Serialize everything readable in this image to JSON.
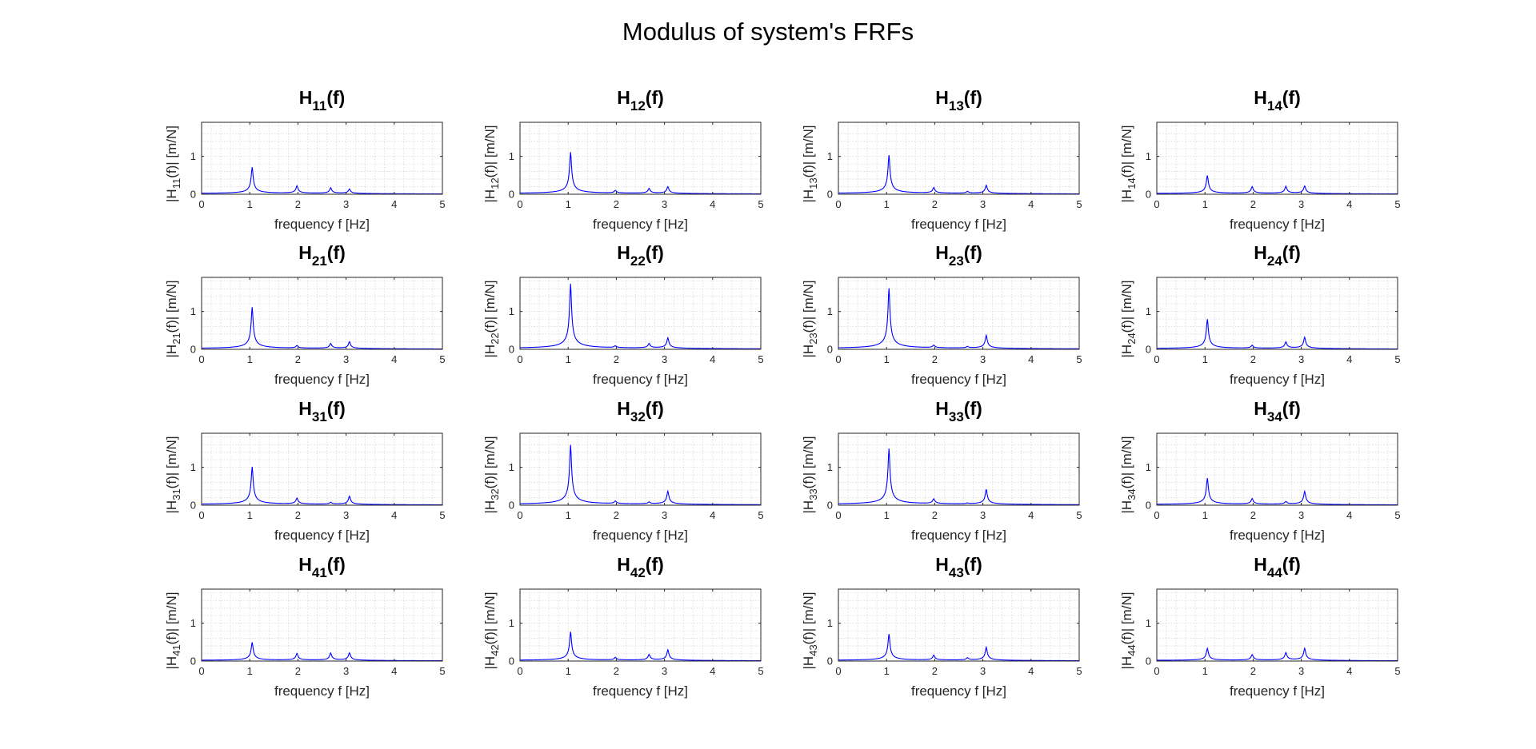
{
  "figure": {
    "title": "Modulus of system's FRFs",
    "background": "#ffffff",
    "line_color": "#0000ff",
    "grid_color": "#d9d9d9"
  },
  "chart_data": [
    {
      "type": "line",
      "title": "H11(f)",
      "title_main": "H",
      "title_sub": "11",
      "title_tail": "(f)",
      "ylabel_pre": "|H",
      "ylabel_sub": "11",
      "ylabel_post": "(f)|   [m/N]",
      "xlabel": "frequency f [Hz]",
      "xlim": [
        0,
        5
      ],
      "ylim": [
        0,
        1.9
      ],
      "xticks": [
        0,
        1,
        2,
        3,
        4,
        5
      ],
      "yticks": [
        0,
        1
      ],
      "grid": true,
      "peaks": [
        {
          "f": 1.05,
          "amp": 0.7
        },
        {
          "f": 1.98,
          "amp": 0.2
        },
        {
          "f": 2.68,
          "amp": 0.15
        },
        {
          "f": 3.07,
          "amp": 0.12
        }
      ]
    },
    {
      "type": "line",
      "title": "H12(f)",
      "title_main": "H",
      "title_sub": "12",
      "title_tail": "(f)",
      "ylabel_pre": "|H",
      "ylabel_sub": "12",
      "ylabel_post": "(f)|   [m/N]",
      "xlabel": "frequency f [Hz]",
      "xlim": [
        0,
        5
      ],
      "ylim": [
        0,
        1.9
      ],
      "xticks": [
        0,
        1,
        2,
        3,
        4,
        5
      ],
      "yticks": [
        0,
        1
      ],
      "grid": true,
      "peaks": [
        {
          "f": 1.05,
          "amp": 1.1
        },
        {
          "f": 1.98,
          "amp": 0.07
        },
        {
          "f": 2.68,
          "amp": 0.13
        },
        {
          "f": 3.07,
          "amp": 0.18
        }
      ]
    },
    {
      "type": "line",
      "title": "H13(f)",
      "title_main": "H",
      "title_sub": "13",
      "title_tail": "(f)",
      "ylabel_pre": "|H",
      "ylabel_sub": "13",
      "ylabel_post": "(f)|   [m/N]",
      "xlabel": "frequency f [Hz]",
      "xlim": [
        0,
        5
      ],
      "ylim": [
        0,
        1.9
      ],
      "xticks": [
        0,
        1,
        2,
        3,
        4,
        5
      ],
      "yticks": [
        0,
        1
      ],
      "grid": true,
      "peaks": [
        {
          "f": 1.05,
          "amp": 1.02
        },
        {
          "f": 1.98,
          "amp": 0.15
        },
        {
          "f": 2.68,
          "amp": 0.05
        },
        {
          "f": 3.07,
          "amp": 0.22
        }
      ]
    },
    {
      "type": "line",
      "title": "H14(f)",
      "title_main": "H",
      "title_sub": "14",
      "title_tail": "(f)",
      "ylabel_pre": "|H",
      "ylabel_sub": "14",
      "ylabel_post": "(f)|   [m/N]",
      "xlabel": "frequency f [Hz]",
      "xlim": [
        0,
        5
      ],
      "ylim": [
        0,
        1.9
      ],
      "xticks": [
        0,
        1,
        2,
        3,
        4,
        5
      ],
      "yticks": [
        0,
        1
      ],
      "grid": true,
      "peaks": [
        {
          "f": 1.05,
          "amp": 0.48
        },
        {
          "f": 1.98,
          "amp": 0.18
        },
        {
          "f": 2.68,
          "amp": 0.19
        },
        {
          "f": 3.07,
          "amp": 0.2
        }
      ]
    },
    {
      "type": "line",
      "title": "H21(f)",
      "title_main": "H",
      "title_sub": "21",
      "title_tail": "(f)",
      "ylabel_pre": "|H",
      "ylabel_sub": "21",
      "ylabel_post": "(f)|   [m/N]",
      "xlabel": "frequency f [Hz]",
      "xlim": [
        0,
        5
      ],
      "ylim": [
        0,
        1.9
      ],
      "xticks": [
        0,
        1,
        2,
        3,
        4,
        5
      ],
      "yticks": [
        0,
        1
      ],
      "grid": true,
      "peaks": [
        {
          "f": 1.05,
          "amp": 1.1
        },
        {
          "f": 1.98,
          "amp": 0.07
        },
        {
          "f": 2.68,
          "amp": 0.13
        },
        {
          "f": 3.07,
          "amp": 0.18
        }
      ]
    },
    {
      "type": "line",
      "title": "H22(f)",
      "title_main": "H",
      "title_sub": "22",
      "title_tail": "(f)",
      "ylabel_pre": "|H",
      "ylabel_sub": "22",
      "ylabel_post": "(f)|   [m/N]",
      "xlabel": "frequency f [Hz]",
      "xlim": [
        0,
        5
      ],
      "ylim": [
        0,
        1.9
      ],
      "xticks": [
        0,
        1,
        2,
        3,
        4,
        5
      ],
      "yticks": [
        0,
        1
      ],
      "grid": true,
      "peaks": [
        {
          "f": 1.05,
          "amp": 1.72
        },
        {
          "f": 1.98,
          "amp": 0.05
        },
        {
          "f": 2.68,
          "amp": 0.12
        },
        {
          "f": 3.07,
          "amp": 0.28
        }
      ]
    },
    {
      "type": "line",
      "title": "H23(f)",
      "title_main": "H",
      "title_sub": "23",
      "title_tail": "(f)",
      "ylabel_pre": "|H",
      "ylabel_sub": "23",
      "ylabel_post": "(f)|   [m/N]",
      "xlabel": "frequency f [Hz]",
      "xlim": [
        0,
        5
      ],
      "ylim": [
        0,
        1.9
      ],
      "xticks": [
        0,
        1,
        2,
        3,
        4,
        5
      ],
      "yticks": [
        0,
        1
      ],
      "grid": true,
      "peaks": [
        {
          "f": 1.05,
          "amp": 1.6
        },
        {
          "f": 1.98,
          "amp": 0.07
        },
        {
          "f": 2.68,
          "amp": 0.04
        },
        {
          "f": 3.07,
          "amp": 0.35
        }
      ]
    },
    {
      "type": "line",
      "title": "H24(f)",
      "title_main": "H",
      "title_sub": "24",
      "title_tail": "(f)",
      "ylabel_pre": "|H",
      "ylabel_sub": "24",
      "ylabel_post": "(f)|   [m/N]",
      "xlabel": "frequency f [Hz]",
      "xlim": [
        0,
        5
      ],
      "ylim": [
        0,
        1.9
      ],
      "xticks": [
        0,
        1,
        2,
        3,
        4,
        5
      ],
      "yticks": [
        0,
        1
      ],
      "grid": true,
      "peaks": [
        {
          "f": 1.05,
          "amp": 0.78
        },
        {
          "f": 1.98,
          "amp": 0.08
        },
        {
          "f": 2.68,
          "amp": 0.17
        },
        {
          "f": 3.07,
          "amp": 0.3
        }
      ]
    },
    {
      "type": "line",
      "title": "H31(f)",
      "title_main": "H",
      "title_sub": "31",
      "title_tail": "(f)",
      "ylabel_pre": "|H",
      "ylabel_sub": "31",
      "ylabel_post": "(f)|   [m/N]",
      "xlabel": "frequency f [Hz]",
      "xlim": [
        0,
        5
      ],
      "ylim": [
        0,
        1.9
      ],
      "xticks": [
        0,
        1,
        2,
        3,
        4,
        5
      ],
      "yticks": [
        0,
        1
      ],
      "grid": true,
      "peaks": [
        {
          "f": 1.05,
          "amp": 1.0
        },
        {
          "f": 1.98,
          "amp": 0.16
        },
        {
          "f": 2.68,
          "amp": 0.05
        },
        {
          "f": 3.07,
          "amp": 0.22
        }
      ]
    },
    {
      "type": "line",
      "title": "H32(f)",
      "title_main": "H",
      "title_sub": "32",
      "title_tail": "(f)",
      "ylabel_pre": "|H",
      "ylabel_sub": "32",
      "ylabel_post": "(f)|   [m/N]",
      "xlabel": "frequency f [Hz]",
      "xlim": [
        0,
        5
      ],
      "ylim": [
        0,
        1.9
      ],
      "xticks": [
        0,
        1,
        2,
        3,
        4,
        5
      ],
      "yticks": [
        0,
        1
      ],
      "grid": true,
      "peaks": [
        {
          "f": 1.05,
          "amp": 1.58
        },
        {
          "f": 1.98,
          "amp": 0.07
        },
        {
          "f": 2.68,
          "amp": 0.05
        },
        {
          "f": 3.07,
          "amp": 0.35
        }
      ]
    },
    {
      "type": "line",
      "title": "H33(f)",
      "title_main": "H",
      "title_sub": "33",
      "title_tail": "(f)",
      "ylabel_pre": "|H",
      "ylabel_sub": "33",
      "ylabel_post": "(f)|   [m/N]",
      "xlabel": "frequency f [Hz]",
      "xlim": [
        0,
        5
      ],
      "ylim": [
        0,
        1.9
      ],
      "xticks": [
        0,
        1,
        2,
        3,
        4,
        5
      ],
      "yticks": [
        0,
        1
      ],
      "grid": true,
      "peaks": [
        {
          "f": 1.05,
          "amp": 1.48
        },
        {
          "f": 1.98,
          "amp": 0.13
        },
        {
          "f": 2.68,
          "amp": 0.02
        },
        {
          "f": 3.07,
          "amp": 0.4
        }
      ]
    },
    {
      "type": "line",
      "title": "H34(f)",
      "title_main": "H",
      "title_sub": "34",
      "title_tail": "(f)",
      "ylabel_pre": "|H",
      "ylabel_sub": "34",
      "ylabel_post": "(f)|   [m/N]",
      "xlabel": "frequency f [Hz]",
      "xlim": [
        0,
        5
      ],
      "ylim": [
        0,
        1.9
      ],
      "xticks": [
        0,
        1,
        2,
        3,
        4,
        5
      ],
      "yticks": [
        0,
        1
      ],
      "grid": true,
      "peaks": [
        {
          "f": 1.05,
          "amp": 0.7
        },
        {
          "f": 1.98,
          "amp": 0.15
        },
        {
          "f": 2.68,
          "amp": 0.07
        },
        {
          "f": 3.07,
          "amp": 0.35
        }
      ]
    },
    {
      "type": "line",
      "title": "H41(f)",
      "title_main": "H",
      "title_sub": "41",
      "title_tail": "(f)",
      "ylabel_pre": "|H",
      "ylabel_sub": "41",
      "ylabel_post": "(f)|   [m/N]",
      "xlabel": "frequency f [Hz]",
      "xlim": [
        0,
        5
      ],
      "ylim": [
        0,
        1.9
      ],
      "xticks": [
        0,
        1,
        2,
        3,
        4,
        5
      ],
      "yticks": [
        0,
        1
      ],
      "grid": true,
      "peaks": [
        {
          "f": 1.05,
          "amp": 0.48
        },
        {
          "f": 1.98,
          "amp": 0.18
        },
        {
          "f": 2.68,
          "amp": 0.19
        },
        {
          "f": 3.07,
          "amp": 0.2
        }
      ]
    },
    {
      "type": "line",
      "title": "H42(f)",
      "title_main": "H",
      "title_sub": "42",
      "title_tail": "(f)",
      "ylabel_pre": "|H",
      "ylabel_sub": "42",
      "ylabel_post": "(f)|   [m/N]",
      "xlabel": "frequency f [Hz]",
      "xlim": [
        0,
        5
      ],
      "ylim": [
        0,
        1.9
      ],
      "xticks": [
        0,
        1,
        2,
        3,
        4,
        5
      ],
      "yticks": [
        0,
        1
      ],
      "grid": true,
      "peaks": [
        {
          "f": 1.05,
          "amp": 0.76
        },
        {
          "f": 1.98,
          "amp": 0.07
        },
        {
          "f": 2.68,
          "amp": 0.15
        },
        {
          "f": 3.07,
          "amp": 0.28
        }
      ]
    },
    {
      "type": "line",
      "title": "H43(f)",
      "title_main": "H",
      "title_sub": "43",
      "title_tail": "(f)",
      "ylabel_pre": "|H",
      "ylabel_sub": "43",
      "ylabel_post": "(f)|   [m/N]",
      "xlabel": "frequency f [Hz]",
      "xlim": [
        0,
        5
      ],
      "ylim": [
        0,
        1.9
      ],
      "xticks": [
        0,
        1,
        2,
        3,
        4,
        5
      ],
      "yticks": [
        0,
        1
      ],
      "grid": true,
      "peaks": [
        {
          "f": 1.05,
          "amp": 0.7
        },
        {
          "f": 1.98,
          "amp": 0.13
        },
        {
          "f": 2.68,
          "amp": 0.06
        },
        {
          "f": 3.07,
          "amp": 0.35
        }
      ]
    },
    {
      "type": "line",
      "title": "H44(f)",
      "title_main": "H",
      "title_sub": "44",
      "title_tail": "(f)",
      "ylabel_pre": "|H",
      "ylabel_sub": "44",
      "ylabel_post": "(f)|   [m/N]",
      "xlabel": "frequency f [Hz]",
      "xlim": [
        0,
        5
      ],
      "ylim": [
        0,
        1.9
      ],
      "xticks": [
        0,
        1,
        2,
        3,
        4,
        5
      ],
      "yticks": [
        0,
        1
      ],
      "grid": true,
      "peaks": [
        {
          "f": 1.05,
          "amp": 0.32
        },
        {
          "f": 1.98,
          "amp": 0.15
        },
        {
          "f": 2.68,
          "amp": 0.2
        },
        {
          "f": 3.07,
          "amp": 0.32
        }
      ]
    }
  ]
}
